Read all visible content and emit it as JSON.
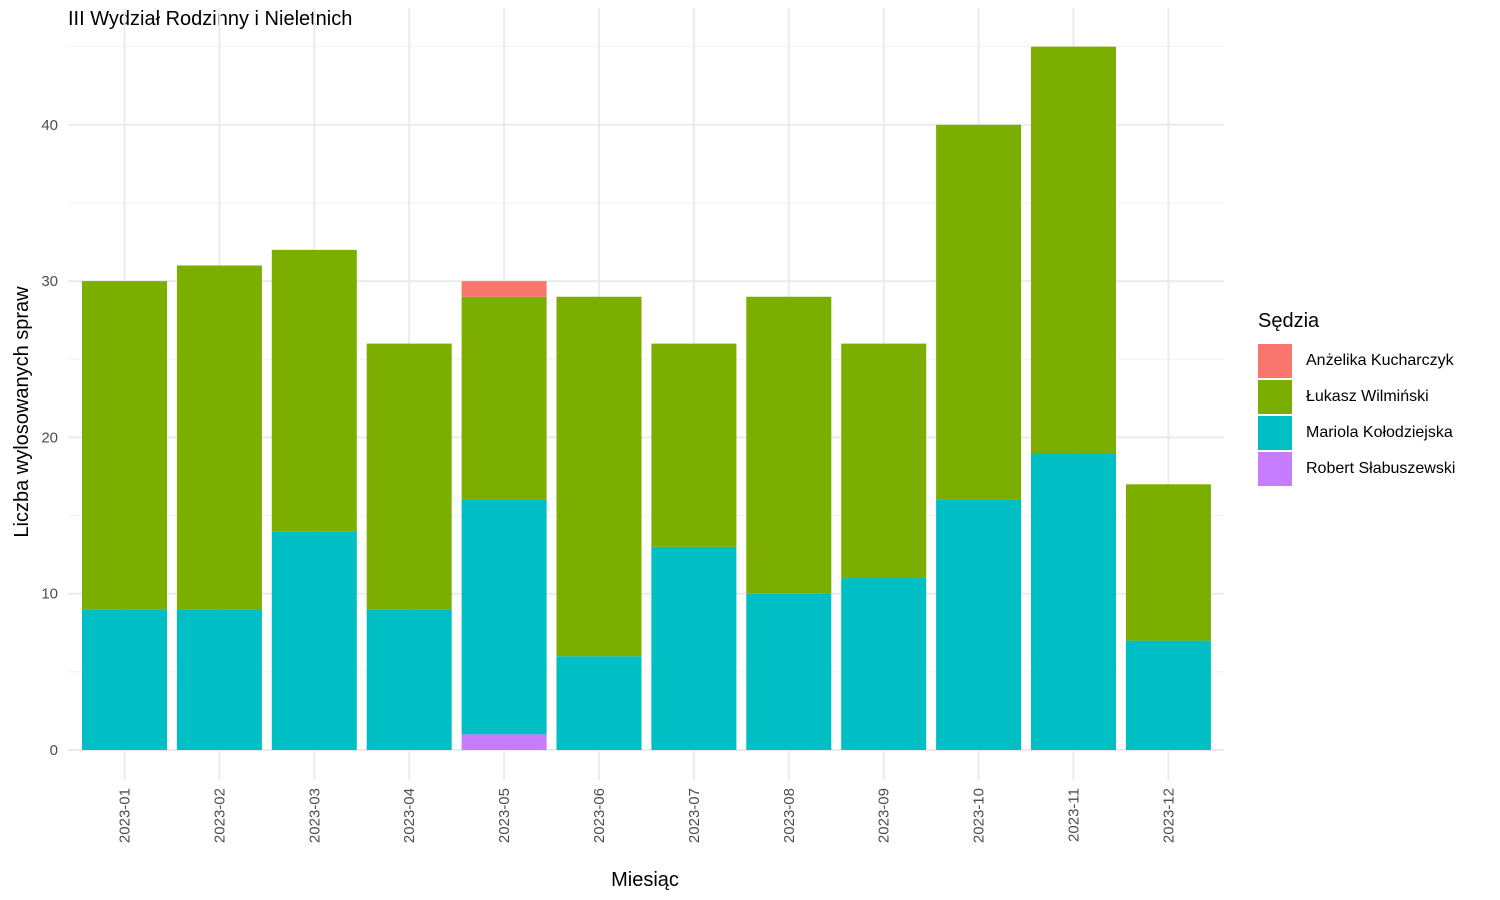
{
  "chart_data": {
    "type": "bar",
    "stacked": true,
    "title": "III Wydział Rodzinny i Nieletnich",
    "xlabel": "Miesiąc",
    "ylabel": "Liczba wylosowanych spraw",
    "ylim": [
      0,
      46
    ],
    "yticks": [
      0,
      10,
      20,
      30,
      40
    ],
    "grid": true,
    "legend": {
      "title": "Sędzia",
      "position": "right"
    },
    "categories": [
      "2023-01",
      "2023-02",
      "2023-03",
      "2023-04",
      "2023-05",
      "2023-06",
      "2023-07",
      "2023-08",
      "2023-09",
      "2023-10",
      "2023-11",
      "2023-12"
    ],
    "series": [
      {
        "name": "Anżelika Kucharczyk",
        "color": "#F8766D",
        "values": [
          0,
          0,
          0,
          0,
          1,
          0,
          0,
          0,
          0,
          0,
          0,
          0
        ]
      },
      {
        "name": "Łukasz Wilmiński",
        "color": "#7CAE00",
        "values": [
          21,
          22,
          18,
          17,
          13,
          23,
          13,
          19,
          15,
          24,
          26,
          10
        ]
      },
      {
        "name": "Mariola Kołodziejska",
        "color": "#00BFC4",
        "values": [
          9,
          9,
          14,
          9,
          15,
          6,
          13,
          10,
          11,
          16,
          19,
          7
        ]
      },
      {
        "name": "Robert Słabuszewski",
        "color": "#C77CFF",
        "values": [
          0,
          0,
          0,
          0,
          1,
          0,
          0,
          0,
          0,
          0,
          0,
          0
        ]
      }
    ]
  }
}
